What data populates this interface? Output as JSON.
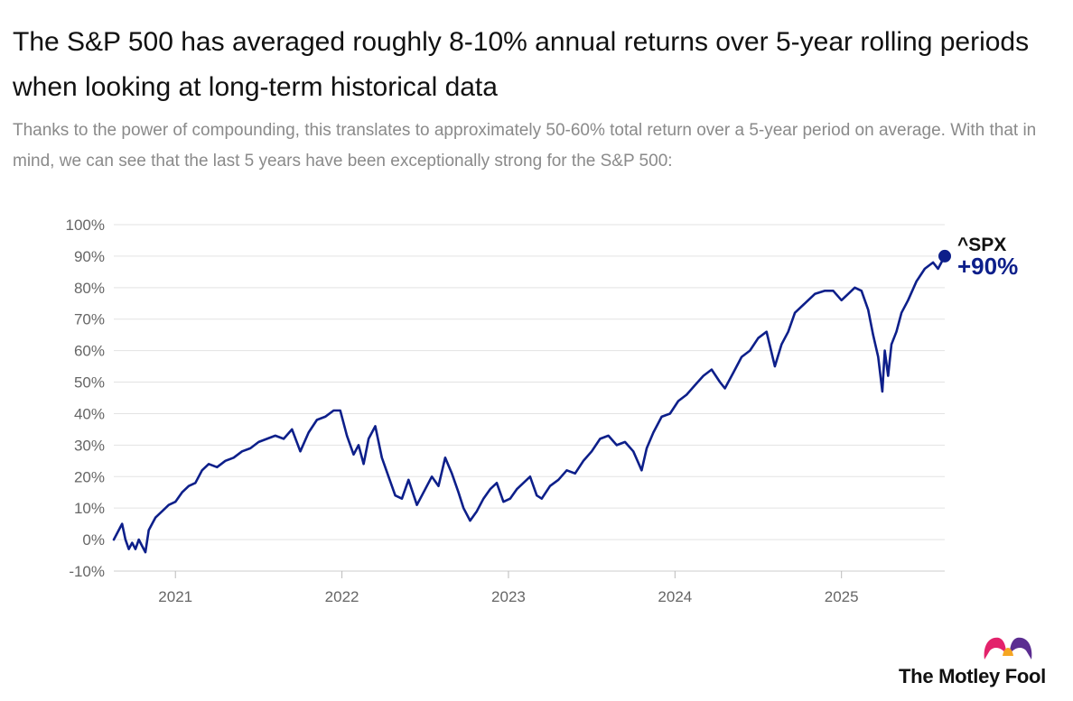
{
  "chart_data": {
    "type": "line",
    "title": "The S&P 500 has averaged roughly 8-10% annual returns over 5-year rolling periods when looking at long-term historical data",
    "subtitle": "Thanks to the power of compounding, this translates to approximately 50-60% total return over a 5-year period on average. With that in mind, we can see that the last 5 years have been exceptionally strong for the S&P 500:",
    "xlabel": "",
    "ylabel": "",
    "ylim": [
      -10,
      100
    ],
    "xlim": [
      2020.63,
      2025.62
    ],
    "y_ticks": [
      "-10%",
      "0%",
      "10%",
      "20%",
      "30%",
      "40%",
      "50%",
      "60%",
      "70%",
      "80%",
      "90%",
      "100%"
    ],
    "y_tick_values": [
      -10,
      0,
      10,
      20,
      30,
      40,
      50,
      60,
      70,
      80,
      90,
      100
    ],
    "x_ticks": [
      "2021",
      "2022",
      "2023",
      "2024",
      "2025"
    ],
    "x_tick_values": [
      2021,
      2022,
      2023,
      2024,
      2025
    ],
    "grid": true,
    "series": [
      {
        "name": "^SPX",
        "end_label": "+90%",
        "color": "#0d1f8a",
        "x": [
          2020.63,
          2020.66,
          2020.68,
          2020.7,
          2020.72,
          2020.74,
          2020.76,
          2020.78,
          2020.8,
          2020.82,
          2020.84,
          2020.86,
          2020.88,
          2020.92,
          2020.96,
          2021.0,
          2021.04,
          2021.08,
          2021.12,
          2021.16,
          2021.2,
          2021.25,
          2021.3,
          2021.35,
          2021.4,
          2021.45,
          2021.5,
          2021.55,
          2021.6,
          2021.65,
          2021.7,
          2021.75,
          2021.8,
          2021.85,
          2021.9,
          2021.95,
          2021.99,
          2022.03,
          2022.07,
          2022.1,
          2022.13,
          2022.16,
          2022.2,
          2022.24,
          2022.28,
          2022.32,
          2022.36,
          2022.4,
          2022.45,
          2022.5,
          2022.54,
          2022.58,
          2022.62,
          2022.66,
          2022.7,
          2022.73,
          2022.77,
          2022.81,
          2022.85,
          2022.89,
          2022.93,
          2022.97,
          2023.01,
          2023.05,
          2023.09,
          2023.13,
          2023.17,
          2023.2,
          2023.25,
          2023.3,
          2023.35,
          2023.4,
          2023.45,
          2023.5,
          2023.55,
          2023.6,
          2023.65,
          2023.7,
          2023.75,
          2023.8,
          2023.83,
          2023.87,
          2023.92,
          2023.97,
          2024.02,
          2024.07,
          2024.12,
          2024.17,
          2024.22,
          2024.27,
          2024.3,
          2024.35,
          2024.4,
          2024.45,
          2024.5,
          2024.55,
          2024.6,
          2024.64,
          2024.68,
          2024.72,
          2024.78,
          2024.84,
          2024.9,
          2024.95,
          2025.0,
          2025.04,
          2025.08,
          2025.12,
          2025.16,
          2025.19,
          2025.22,
          2025.245,
          2025.26,
          2025.28,
          2025.3,
          2025.33,
          2025.36,
          2025.4,
          2025.45,
          2025.5,
          2025.55,
          2025.58,
          2025.62
        ],
        "values": [
          0,
          3,
          5,
          0,
          -3,
          -1,
          -3,
          0,
          -2,
          -4,
          3,
          5,
          7,
          9,
          11,
          12,
          15,
          17,
          18,
          22,
          24,
          23,
          25,
          26,
          28,
          29,
          31,
          32,
          33,
          32,
          35,
          28,
          34,
          38,
          39,
          41,
          41,
          33,
          27,
          30,
          24,
          32,
          36,
          26,
          20,
          14,
          13,
          19,
          11,
          16,
          20,
          17,
          26,
          21,
          15,
          10,
          6,
          9,
          13,
          16,
          18,
          12,
          13,
          16,
          18,
          20,
          14,
          13,
          17,
          19,
          22,
          21,
          25,
          28,
          32,
          33,
          30,
          31,
          28,
          22,
          29,
          34,
          39,
          40,
          44,
          46,
          49,
          52,
          54,
          50,
          48,
          53,
          58,
          60,
          64,
          66,
          55,
          62,
          66,
          72,
          75,
          78,
          79,
          79,
          76,
          78,
          80,
          79,
          73,
          65,
          58,
          47,
          60,
          52,
          62,
          66,
          72,
          76,
          82,
          86,
          88,
          86,
          90
        ]
      }
    ]
  },
  "brand": {
    "name": "The Motley Fool",
    "colors": {
      "line": "#0d1f8a",
      "grid": "#e3e3e3",
      "logo_left": "#e3226b",
      "logo_right": "#5b2d91",
      "logo_center": "#f5a623"
    }
  }
}
